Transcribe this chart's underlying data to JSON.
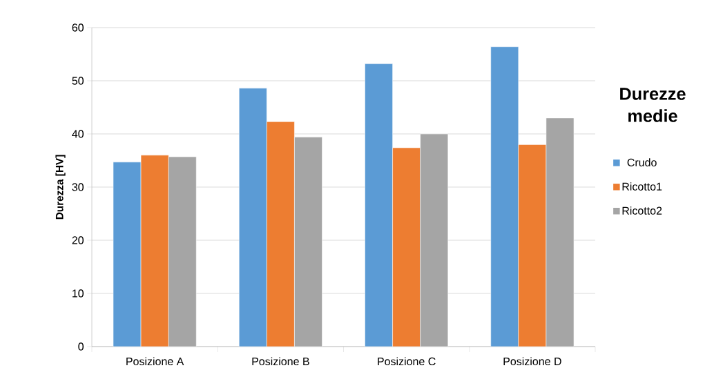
{
  "chart_data": {
    "type": "bar",
    "title": "Durezze medie",
    "ylabel": "Durezza [HV]",
    "categories": [
      "Posizione A",
      "Posizione B",
      "Posizione C",
      "Posizione D"
    ],
    "series": [
      {
        "name": "Crudo",
        "color": "#5b9bd5",
        "values": [
          34.7,
          48.6,
          53.2,
          56.4
        ]
      },
      {
        "name": "Ricotto1",
        "color": "#ed7d31",
        "values": [
          36.0,
          42.3,
          37.4,
          38.0
        ]
      },
      {
        "name": "Ricotto2",
        "color": "#a5a5a5",
        "values": [
          35.7,
          39.4,
          40.0,
          43.0
        ]
      }
    ],
    "ylim": [
      0,
      60
    ],
    "yticks": [
      0,
      10,
      20,
      30,
      40,
      50,
      60
    ],
    "grid": "y",
    "legend": "right"
  }
}
